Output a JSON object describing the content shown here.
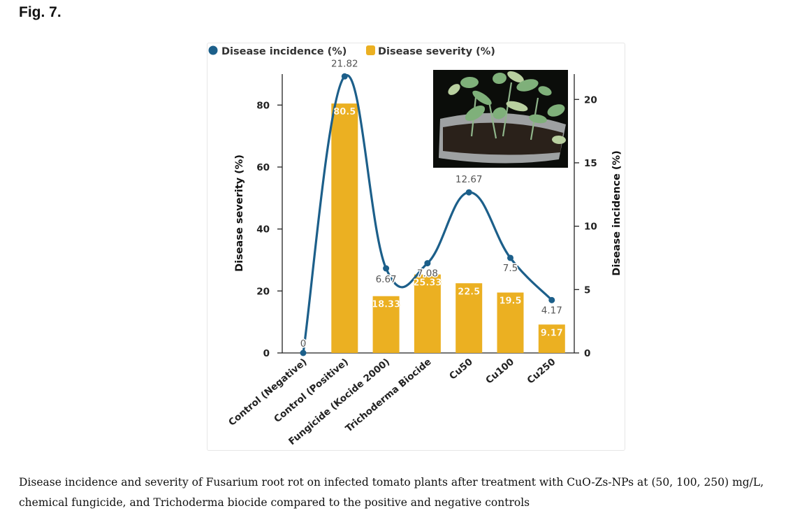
{
  "figure_label": "Fig. 7.",
  "caption": "Disease incidence and severity of Fusarium root rot on infected tomato plants after treatment with CuO-Zs-NPs at (50, 100, 250) mg/L, chemical fungicide, and Trichoderma biocide compared to the positive and negative controls",
  "colors": {
    "bar": "#ebb022",
    "line": "#1c5f8a",
    "bar_label_text": "#ffffff",
    "value_text": "#555555"
  },
  "chart_data": {
    "type": "bar+line",
    "categories": [
      "Control (Negative)",
      "Control (Positive)",
      "Fungicide (Kocide 2000)",
      "Trichoderma  Biocide",
      "Cu50",
      "Cu100",
      "Cu250"
    ],
    "series": [
      {
        "name": "Disease severity (%)",
        "type": "bar",
        "axis": "left",
        "values": [
          0,
          80.5,
          18.33,
          25.33,
          22.5,
          19.5,
          9.17
        ]
      },
      {
        "name": "Disease incidence (%)",
        "type": "line",
        "axis": "right",
        "values": [
          0,
          21.82,
          6.67,
          7.08,
          12.67,
          7.5,
          4.17
        ]
      }
    ],
    "bar_labels": [
      "",
      "80.5",
      "18.33",
      "25.33",
      "22.5",
      "19.5",
      "9.17"
    ],
    "line_labels": [
      "0",
      "21.82",
      "6.67",
      "7.08",
      "12.67",
      "7.5",
      "4.17"
    ],
    "ylabel_left": "Disease severity (%)",
    "ylabel_right": "Disease incidence (%)",
    "ylim_left": [
      0,
      90
    ],
    "ylim_right": [
      0,
      22
    ],
    "yticks_left": [
      0,
      20,
      40,
      60,
      80
    ],
    "yticks_right": [
      0,
      5,
      10,
      15,
      20
    ],
    "legend": [
      "Disease incidence (%)",
      "Disease severity (%)"
    ],
    "legend_position": "top-left",
    "inset_photo": "tomato-plants-photo"
  }
}
